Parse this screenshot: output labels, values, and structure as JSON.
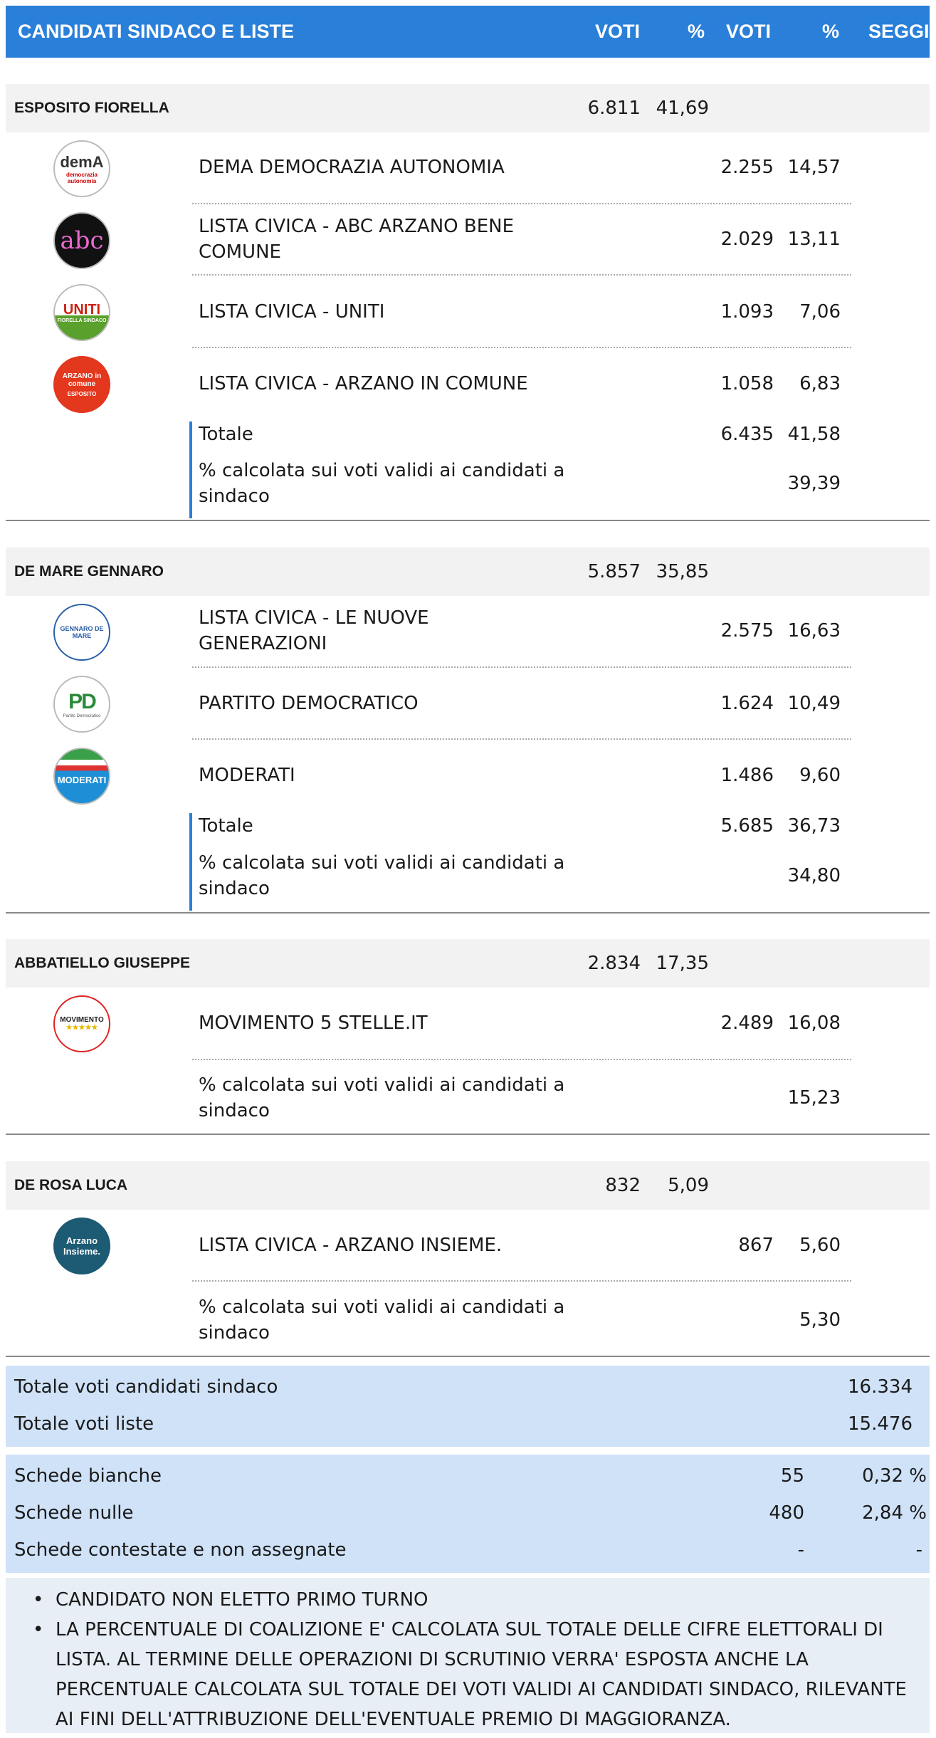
{
  "header": {
    "title": "CANDIDATI SINDACO E LISTE",
    "voti1": "VOTI",
    "pct1": "%",
    "voti2": "VOTI",
    "pct2": "%",
    "seggi": "SEGGI"
  },
  "candidates": [
    {
      "name": "ESPOSITO FIORELLA",
      "voti": "6.811",
      "pct": "41,69",
      "lists": [
        {
          "name_l1": "DEMA DEMOCRAZIA AUTONOMIA",
          "name_l2": "",
          "voti": "2.255",
          "pct": "14,57",
          "logo_text": "demA",
          "logo_sub": "democrazia autonomia"
        },
        {
          "name_l1": "LISTA CIVICA - ABC ARZANO BENE",
          "name_l2": "COMUNE",
          "voti": "2.029",
          "pct": "13,11",
          "logo_text": "abc",
          "logo_sub": ""
        },
        {
          "name_l1": "LISTA CIVICA - UNITI",
          "name_l2": "",
          "voti": "1.093",
          "pct": "7,06",
          "logo_text": "UNITI",
          "logo_sub": "FIORELLA SINDACO"
        },
        {
          "name_l1": "LISTA CIVICA - ARZANO IN COMUNE",
          "name_l2": "",
          "voti": "1.058",
          "pct": "6,83",
          "logo_text": "ARZANO in comune",
          "logo_sub": "ESPOSITO"
        }
      ],
      "totale_label": "Totale",
      "totale_voti": "6.435",
      "totale_pct": "41,58",
      "calc_l1": "% calcolata sui voti validi ai candidati a",
      "calc_l2": "sindaco",
      "calc_pct": "39,39"
    },
    {
      "name": "DE MARE GENNARO",
      "voti": "5.857",
      "pct": "35,85",
      "lists": [
        {
          "name_l1": "LISTA CIVICA - LE NUOVE",
          "name_l2": "GENERAZIONI",
          "voti": "2.575",
          "pct": "16,63",
          "logo_text": "GENNARO DE MARE",
          "logo_sub": ""
        },
        {
          "name_l1": "PARTITO DEMOCRATICO",
          "name_l2": "",
          "voti": "1.624",
          "pct": "10,49",
          "logo_text": "PD",
          "logo_sub": "Partito Democratico"
        },
        {
          "name_l1": "MODERATI",
          "name_l2": "",
          "voti": "1.486",
          "pct": "9,60",
          "logo_text": "MODERATI",
          "logo_sub": ""
        }
      ],
      "totale_label": "Totale",
      "totale_voti": "5.685",
      "totale_pct": "36,73",
      "calc_l1": "% calcolata sui voti validi ai candidati a",
      "calc_l2": "sindaco",
      "calc_pct": "34,80"
    },
    {
      "name": "ABBATIELLO GIUSEPPE",
      "voti": "2.834",
      "pct": "17,35",
      "lists": [
        {
          "name_l1": "MOVIMENTO 5 STELLE.IT",
          "name_l2": "",
          "voti": "2.489",
          "pct": "16,08",
          "logo_text": "MOVIMENTO",
          "logo_sub": "★★★★★"
        }
      ],
      "calc_l1": "% calcolata sui voti validi ai candidati a",
      "calc_l2": "sindaco",
      "calc_pct": "15,23"
    },
    {
      "name": "DE ROSA LUCA",
      "voti": "832",
      "pct": "5,09",
      "lists": [
        {
          "name_l1": "LISTA CIVICA - ARZANO INSIEME.",
          "name_l2": "",
          "voti": "867",
          "pct": "5,60",
          "logo_text": "Arzano Insieme.",
          "logo_sub": ""
        }
      ],
      "calc_l1": "% calcolata sui voti validi ai candidati a",
      "calc_l2": "sindaco",
      "calc_pct": "5,30"
    }
  ],
  "totals": {
    "sindaco_label": "Totale voti candidati sindaco",
    "sindaco_value": "16.334",
    "liste_label": "Totale voti liste",
    "liste_value": "15.476"
  },
  "schede": [
    {
      "label": "Schede bianche",
      "value": "55",
      "pct": "0,32 %"
    },
    {
      "label": "Schede nulle",
      "value": "480",
      "pct": "2,84 %"
    },
    {
      "label": "Schede contestate e non assegnate",
      "value": "-",
      "pct": "-"
    }
  ],
  "notes": [
    "CANDIDATO NON ELETTO PRIMO TURNO",
    "LA PERCENTUALE DI COALIZIONE E' CALCOLATA SUL TOTALE DELLE CIFRE ELETTORALI DI LISTA. AL TERMINE DELLE OPERAZIONI DI SCRUTINIO VERRA' ESPOSTA ANCHE LA PERCENTUALE CALCOLATA SUL TOTALE DEI VOTI VALIDI AI CANDIDATI SINDACO, RILEVANTE AI FINI DELL'ATTRIBUZIONE DELL'EVENTUALE PREMIO DI MAGGIORANZA."
  ],
  "colors": {
    "header": "#2a7fd9",
    "summary_bg": "#cfe2f8",
    "notes_bg": "#e8eef6"
  }
}
